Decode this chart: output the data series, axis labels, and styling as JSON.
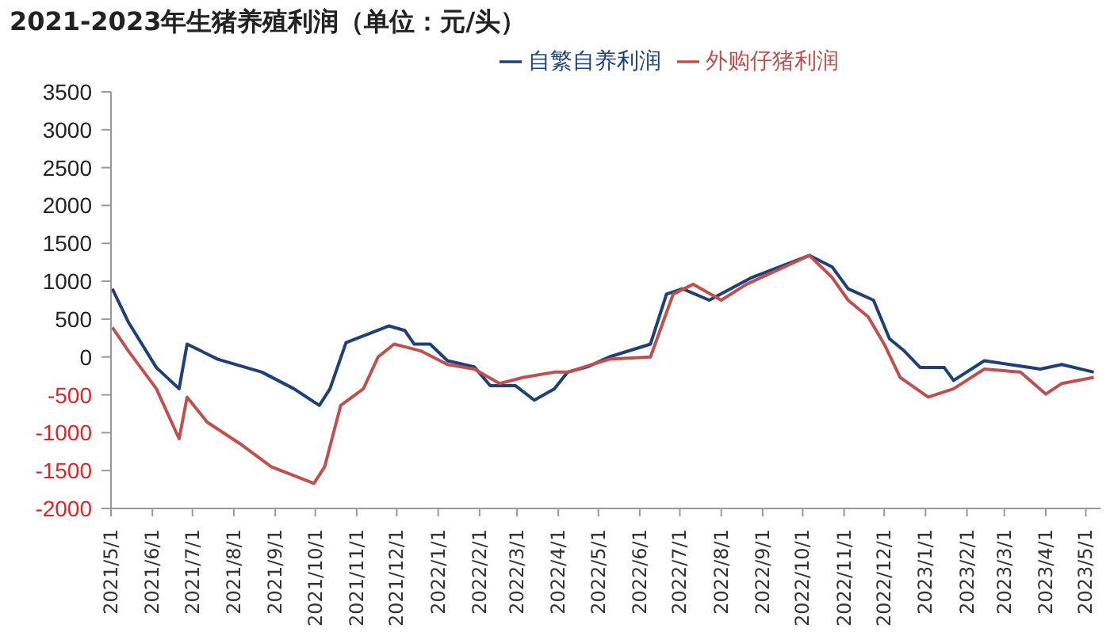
{
  "chart_data": {
    "type": "line",
    "title": "2021-2023年生猪养殖利润（单位：元/头）",
    "series": [
      {
        "name": "自繁自养利润",
        "color": "#1f3f7a",
        "x": [
          "2021-05-02",
          "2021-05-14",
          "2021-06-04",
          "2021-06-21",
          "2021-06-27",
          "2021-07-20",
          "2021-08-22",
          "2021-09-15",
          "2021-10-04",
          "2021-10-12",
          "2021-10-24",
          "2021-11-09",
          "2021-11-25",
          "2021-12-07",
          "2021-12-14",
          "2021-12-26",
          "2022-01-08",
          "2022-01-28",
          "2022-02-09",
          "2022-02-28",
          "2022-03-14",
          "2022-03-29",
          "2022-04-08",
          "2022-04-23",
          "2022-05-09",
          "2022-06-09",
          "2022-06-21",
          "2022-07-03",
          "2022-07-23",
          "2022-08-24",
          "2022-10-06",
          "2022-10-23",
          "2022-11-04",
          "2022-11-23",
          "2022-12-05",
          "2022-12-16",
          "2022-12-28",
          "2023-01-15",
          "2023-01-22",
          "2023-02-14",
          "2023-03-05",
          "2023-03-28",
          "2023-04-13",
          "2023-05-07"
        ],
        "values": [
          900,
          460,
          -140,
          -420,
          170,
          -30,
          -200,
          -420,
          -640,
          -420,
          190,
          300,
          410,
          350,
          170,
          170,
          -50,
          -130,
          -380,
          -380,
          -570,
          -420,
          -200,
          -130,
          0,
          170,
          830,
          900,
          750,
          1050,
          1340,
          1190,
          900,
          750,
          240,
          80,
          -140,
          -140,
          -310,
          -50,
          -100,
          -160,
          -100,
          -200
        ]
      },
      {
        "name": "外购仔猪利润",
        "color": "#c0504d",
        "x": [
          "2021-05-02",
          "2021-05-14",
          "2021-06-04",
          "2021-06-21",
          "2021-06-27",
          "2021-07-12",
          "2021-08-06",
          "2021-08-29",
          "2021-09-30",
          "2021-10-08",
          "2021-10-20",
          "2021-11-06",
          "2021-11-17",
          "2021-11-29",
          "2021-12-19",
          "2022-01-08",
          "2022-01-28",
          "2022-02-16",
          "2022-03-06",
          "2022-03-29",
          "2022-04-08",
          "2022-05-09",
          "2022-06-09",
          "2022-06-26",
          "2022-07-11",
          "2022-08-01",
          "2022-08-20",
          "2022-10-06",
          "2022-10-23",
          "2022-11-04",
          "2022-11-19",
          "2022-12-01",
          "2022-12-13",
          "2023-01-03",
          "2023-01-22",
          "2023-02-14",
          "2023-03-13",
          "2023-04-01",
          "2023-04-13",
          "2023-05-07"
        ],
        "values": [
          390,
          80,
          -420,
          -1080,
          -530,
          -860,
          -1150,
          -1450,
          -1670,
          -1450,
          -640,
          -420,
          0,
          170,
          80,
          -100,
          -160,
          -350,
          -270,
          -200,
          -200,
          -30,
          0,
          830,
          960,
          750,
          960,
          1340,
          1050,
          750,
          530,
          170,
          -270,
          -530,
          -420,
          -160,
          -200,
          -490,
          -350,
          -270
        ]
      }
    ],
    "xlim": [
      "2021-05-01",
      "2023-05-12"
    ],
    "xticks": [
      {
        "value": "2021-05-01",
        "label": "2021/5/1"
      },
      {
        "value": "2021-06-01",
        "label": "2021/6/1"
      },
      {
        "value": "2021-07-01",
        "label": "2021/7/1"
      },
      {
        "value": "2021-08-01",
        "label": "2021/8/1"
      },
      {
        "value": "2021-09-01",
        "label": "2021/9/1"
      },
      {
        "value": "2021-10-01",
        "label": "2021/10/1"
      },
      {
        "value": "2021-11-01",
        "label": "2021/11/1"
      },
      {
        "value": "2021-12-01",
        "label": "2021/12/1"
      },
      {
        "value": "2022-01-01",
        "label": "2022/1/1"
      },
      {
        "value": "2022-02-01",
        "label": "2022/2/1"
      },
      {
        "value": "2022-03-01",
        "label": "2022/3/1"
      },
      {
        "value": "2022-04-01",
        "label": "2022/4/1"
      },
      {
        "value": "2022-05-01",
        "label": "2022/5/1"
      },
      {
        "value": "2022-06-01",
        "label": "2022/6/1"
      },
      {
        "value": "2022-07-01",
        "label": "2022/7/1"
      },
      {
        "value": "2022-08-01",
        "label": "2022/8/1"
      },
      {
        "value": "2022-09-01",
        "label": "2022/9/1"
      },
      {
        "value": "2022-10-01",
        "label": "2022/10/1"
      },
      {
        "value": "2022-11-01",
        "label": "2022/11/1"
      },
      {
        "value": "2022-12-01",
        "label": "2022/12/1"
      },
      {
        "value": "2023-01-01",
        "label": "2023/1/1"
      },
      {
        "value": "2023-02-01",
        "label": "2023/2/1"
      },
      {
        "value": "2023-03-01",
        "label": "2023/3/1"
      },
      {
        "value": "2023-04-01",
        "label": "2023/4/1"
      },
      {
        "value": "2023-05-01",
        "label": "2023/5/1"
      }
    ],
    "ylim": [
      -2000,
      3500
    ],
    "yticks": [
      -2000,
      -1500,
      -1000,
      -500,
      0,
      500,
      1000,
      1500,
      2000,
      2500,
      3000,
      3500
    ],
    "legend": "top",
    "marker": "none",
    "line_style": "solid"
  }
}
